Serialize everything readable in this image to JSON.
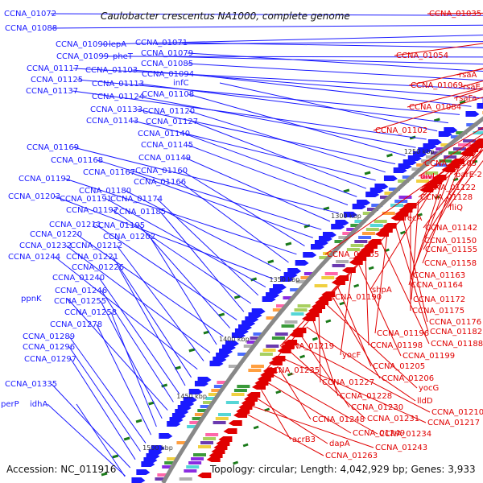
{
  "title": "Caulobacter crescentus NA1000, complete genome",
  "footer": {
    "accession": "Accession: NC_011916",
    "topology": "Topology: circular; Length: 4,042,929 bp; Genes: 3,933"
  },
  "colors": {
    "forward": "#1a1aff",
    "reverse": "#e00000",
    "backbone": "#888888",
    "gc": "#1a7a1a"
  },
  "kbp_marks": [
    "1200 kbp",
    "1250 kbp",
    "1300 kbp",
    "1350 kbp",
    "1400 kbp",
    "1450 kbp",
    "1500 kbp"
  ],
  "left_labels": [
    "CCNA_01072",
    "CCNA_01088",
    "CCNA_01090",
    "lepA",
    "CCNA_01071",
    "CCNA_01099",
    "pheT",
    "CCNA_01079",
    "CCNA_01085",
    "CCNA_01117",
    "CCNA_01103",
    "CCNA_01094",
    "CCNA_01125",
    "CCNA_01113",
    "infC",
    "CCNA_01137",
    "CCNA_01124",
    "CCNA_01108",
    "CCNA_01133",
    "CCNA_01120",
    "CCNA_01143",
    "CCNA_01127",
    "CCNA_01140",
    "CCNA_01145",
    "CCNA_01169",
    "CCNA_01149",
    "CCNA_01168",
    "CCNA_01167",
    "CCNA_01160",
    "CCNA_01192",
    "CCNA_01166",
    "CCNA_01180",
    "CCNA_01203",
    "CCNA_01191",
    "CCNA_01174",
    "CCNA_01197",
    "CCNA_01185",
    "CCNA_01211",
    "CCNA_01195",
    "CCNA_01220",
    "CCNA_01202",
    "CCNA_01232",
    "CCNA_01212",
    "CCNA_01244",
    "CCNA_01221",
    "CCNA_01226",
    "CCNA_01240",
    "CCNA_01246",
    "ppnK",
    "CCNA_01255",
    "CCNA_01258",
    "CCNA_01278",
    "CCNA_01289",
    "CCNA_01296",
    "CCNA_01297",
    "CCNA_01335",
    "perP",
    "idhA"
  ],
  "right_labels": [
    "CCNA_01035",
    "CCNA_01054",
    "rsaA",
    "CCNA_01069",
    "rsaE",
    "rsaFa",
    "CCNA_01084",
    "CCNA_01102",
    "CCNA_01105",
    "parE-2",
    "divJ",
    "CCNA_01122",
    "CCNA_01128",
    "fliQ",
    "recA",
    "CCNA_01142",
    "CCNA_01150",
    "CCNA_01155",
    "CCNA_01165",
    "CCNA_01158",
    "CCNA_01163",
    "CCNA_01164",
    "shpA",
    "CCNA_01190",
    "CCNA_01172",
    "CCNA_01175",
    "CCNA_01176",
    "CCNA_01182",
    "CCNA_01196",
    "CCNA_01188",
    "CCNA_01219",
    "CCNA_01198",
    "CCNA_01199",
    "yocF",
    "CCNA_01235",
    "CCNA_01205",
    "CCNA_01206",
    "yocG",
    "CCNA_01227",
    "CCNA_01228",
    "lldD",
    "CCNA_01230",
    "CCNA_01210",
    "CCNA_01231",
    "CCNA_01217",
    "CCNA_01248",
    "CCNA_01234",
    "CCNA_01249",
    "acrB3",
    "dapA",
    "CCNA_01243",
    "CCNA_01263"
  ]
}
